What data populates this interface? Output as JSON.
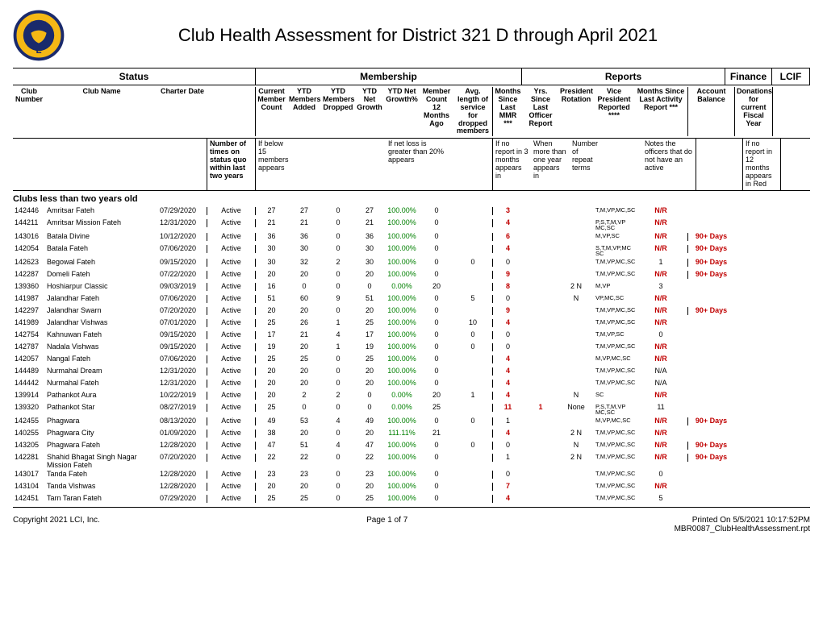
{
  "title": "Club Health Assessment for District 321 D through April 2021",
  "section_headers": {
    "status": "Status",
    "membership": "Membership",
    "reports": "Reports",
    "finance": "Finance",
    "lcif": "LCIF"
  },
  "col_headers": {
    "club_number": "Club Number",
    "club_name": "Club Name",
    "charter_date": "Charter Date",
    "number_of_times": "Number of times on status quo within last two years",
    "member_count": "Current Member Count",
    "ytd_added": "YTD Members Added",
    "ytd_dropped": "YTD Members Dropped",
    "ytd_net_growth": "YTD Net Growth",
    "ytd_net_growth_pct": "YTD Net Growth%",
    "count12ago": "Member Count 12 Months Ago",
    "avg_length": "Avg. length of service for dropped members",
    "months_since_mmr": "Months Since Last MMR ***",
    "yrs_since_officer": "Yrs. Since Last Officer Report",
    "pres_rotation": "President Rotation",
    "vp_reported": "Vice President Reported ****",
    "months_activity": "Months Since Last Activity Report ***",
    "account_balance": "Account Balance",
    "donations": "Donations for current Fiscal Year"
  },
  "notes": {
    "notimes": "Number of times on status quo within last two years",
    "mcount": "If below 15 members appears",
    "netloss": "If net loss is greater than 20% appears",
    "mosince": "If no report in 3 months appears in",
    "yrsince": "When more than one year appears in",
    "presrot": "Number of repeat terms",
    "vprep": "Notes the officers that do not have an active",
    "lcif": "If no report in 12 months appears in Red"
  },
  "section_title": "Clubs less than two years old",
  "colors": {
    "growth_green": "#008000",
    "alert_red": "#c00000",
    "text": "#000000",
    "background": "#ffffff",
    "border": "#000000"
  },
  "rows": [
    {
      "no": "142446",
      "name": "Amritsar Fateh",
      "charter": "07/29/2020",
      "status": "Active",
      "mc": "27",
      "add": "27",
      "drop": "0",
      "net": "27",
      "pct": "100.00%",
      "c12": "0",
      "avg": "",
      "mos": "3",
      "mos_red": true,
      "yrs": "",
      "rot": "",
      "vp": "T,M,VP,MC,SC",
      "act": "N/R",
      "act_red": true,
      "acct": "",
      "don": ""
    },
    {
      "no": "144211",
      "name": "Amritsar Mission Fateh",
      "charter": "12/31/2020",
      "status": "Active",
      "mc": "21",
      "add": "21",
      "drop": "0",
      "net": "21",
      "pct": "100.00%",
      "c12": "0",
      "avg": "",
      "mos": "4",
      "mos_red": true,
      "yrs": "",
      "rot": "",
      "vp": "P,S,T,M,VP MC,SC",
      "act": "N/R",
      "act_red": true,
      "acct": "",
      "don": ""
    },
    {
      "no": "143016",
      "name": "Batala Divine",
      "charter": "10/12/2020",
      "status": "Active",
      "mc": "36",
      "add": "36",
      "drop": "0",
      "net": "36",
      "pct": "100.00%",
      "c12": "0",
      "avg": "",
      "mos": "6",
      "mos_red": true,
      "yrs": "",
      "rot": "",
      "vp": "M,VP,SC",
      "act": "N/R",
      "act_red": true,
      "acct": "90+ Days",
      "don": ""
    },
    {
      "no": "142054",
      "name": "Batala Fateh",
      "charter": "07/06/2020",
      "status": "Active",
      "mc": "30",
      "add": "30",
      "drop": "0",
      "net": "30",
      "pct": "100.00%",
      "c12": "0",
      "avg": "",
      "mos": "4",
      "mos_red": true,
      "yrs": "",
      "rot": "",
      "vp": "S,T,M,VP,MC SC",
      "act": "N/R",
      "act_red": true,
      "acct": "90+ Days",
      "don": ""
    },
    {
      "no": "142623",
      "name": "Begowal Fateh",
      "charter": "09/15/2020",
      "status": "Active",
      "mc": "30",
      "add": "32",
      "drop": "2",
      "net": "30",
      "pct": "100.00%",
      "c12": "0",
      "avg": "0",
      "mos": "0",
      "mos_red": false,
      "yrs": "",
      "rot": "",
      "vp": "T,M,VP,MC,SC",
      "act": "1",
      "act_red": false,
      "acct": "90+ Days",
      "don": ""
    },
    {
      "no": "142287",
      "name": "Domeli Fateh",
      "charter": "07/22/2020",
      "status": "Active",
      "mc": "20",
      "add": "20",
      "drop": "0",
      "net": "20",
      "pct": "100.00%",
      "c12": "0",
      "avg": "",
      "mos": "9",
      "mos_red": true,
      "yrs": "",
      "rot": "",
      "vp": "T,M,VP,MC,SC",
      "act": "N/R",
      "act_red": true,
      "acct": "90+ Days",
      "don": ""
    },
    {
      "no": "139360",
      "name": "Hoshiarpur Classic",
      "charter": "09/03/2019",
      "status": "Active",
      "mc": "16",
      "add": "0",
      "drop": "0",
      "net": "0",
      "pct": "0.00%",
      "c12": "20",
      "avg": "",
      "mos": "8",
      "mos_red": true,
      "yrs": "",
      "rot": "2",
      "rot_n": "N",
      "vp": "M,VP",
      "act": "3",
      "act_red": false,
      "acct": "",
      "don": ""
    },
    {
      "no": "141987",
      "name": "Jalandhar Fateh",
      "charter": "07/06/2020",
      "status": "Active",
      "mc": "51",
      "add": "60",
      "drop": "9",
      "net": "51",
      "pct": "100.00%",
      "c12": "0",
      "avg": "5",
      "mos": "0",
      "mos_red": false,
      "yrs": "",
      "rot": "",
      "rot_n": "N",
      "vp": "VP,MC,SC",
      "act": "N/R",
      "act_red": true,
      "acct": "",
      "don": ""
    },
    {
      "no": "142297",
      "name": "Jalandhar Swarn",
      "charter": "07/20/2020",
      "status": "Active",
      "mc": "20",
      "add": "20",
      "drop": "0",
      "net": "20",
      "pct": "100.00%",
      "c12": "0",
      "avg": "",
      "mos": "9",
      "mos_red": true,
      "yrs": "",
      "rot": "",
      "vp": "T,M,VP,MC,SC",
      "act": "N/R",
      "act_red": true,
      "acct": "90+ Days",
      "don": ""
    },
    {
      "no": "141989",
      "name": "Jalandhar Vishwas",
      "charter": "07/01/2020",
      "status": "Active",
      "mc": "25",
      "add": "26",
      "drop": "1",
      "net": "25",
      "pct": "100.00%",
      "c12": "0",
      "avg": "10",
      "mos": "4",
      "mos_red": true,
      "yrs": "",
      "rot": "",
      "vp": "T,M,VP,MC,SC",
      "act": "N/R",
      "act_red": true,
      "acct": "",
      "don": ""
    },
    {
      "no": "142754",
      "name": "Kahnuwan Fateh",
      "charter": "09/15/2020",
      "status": "Active",
      "mc": "17",
      "add": "21",
      "drop": "4",
      "net": "17",
      "pct": "100.00%",
      "c12": "0",
      "avg": "0",
      "mos": "0",
      "mos_red": false,
      "yrs": "",
      "rot": "",
      "vp": "T,M,VP,SC",
      "act": "0",
      "act_red": false,
      "acct": "",
      "don": ""
    },
    {
      "no": "142787",
      "name": "Nadala Vishwas",
      "charter": "09/15/2020",
      "status": "Active",
      "mc": "19",
      "add": "20",
      "drop": "1",
      "net": "19",
      "pct": "100.00%",
      "c12": "0",
      "avg": "0",
      "mos": "0",
      "mos_red": false,
      "yrs": "",
      "rot": "",
      "vp": "T,M,VP,MC,SC",
      "act": "N/R",
      "act_red": true,
      "acct": "",
      "don": ""
    },
    {
      "no": "142057",
      "name": "Nangal Fateh",
      "charter": "07/06/2020",
      "status": "Active",
      "mc": "25",
      "add": "25",
      "drop": "0",
      "net": "25",
      "pct": "100.00%",
      "c12": "0",
      "avg": "",
      "mos": "4",
      "mos_red": true,
      "yrs": "",
      "rot": "",
      "vp": "M,VP,MC,SC",
      "act": "N/R",
      "act_red": true,
      "acct": "",
      "don": ""
    },
    {
      "no": "144489",
      "name": "Nurmahal Dream",
      "charter": "12/31/2020",
      "status": "Active",
      "mc": "20",
      "add": "20",
      "drop": "0",
      "net": "20",
      "pct": "100.00%",
      "c12": "0",
      "avg": "",
      "mos": "4",
      "mos_red": true,
      "yrs": "",
      "rot": "",
      "vp": "T,M,VP,MC,SC",
      "act": "N/A",
      "act_red": false,
      "acct": "",
      "don": ""
    },
    {
      "no": "144442",
      "name": "Nurmahal Fateh",
      "charter": "12/31/2020",
      "status": "Active",
      "mc": "20",
      "add": "20",
      "drop": "0",
      "net": "20",
      "pct": "100.00%",
      "c12": "0",
      "avg": "",
      "mos": "4",
      "mos_red": true,
      "yrs": "",
      "rot": "",
      "vp": "T,M,VP,MC,SC",
      "act": "N/A",
      "act_red": false,
      "acct": "",
      "don": ""
    },
    {
      "no": "139914",
      "name": "Pathankot Aura",
      "charter": "10/22/2019",
      "status": "Active",
      "mc": "20",
      "add": "2",
      "drop": "2",
      "net": "0",
      "pct": "0.00%",
      "c12": "20",
      "avg": "1",
      "mos": "4",
      "mos_red": true,
      "yrs": "",
      "rot": "",
      "rot_n": "N",
      "vp": "SC",
      "act": "N/R",
      "act_red": true,
      "acct": "",
      "don": ""
    },
    {
      "no": "139320",
      "name": "Pathankot Star",
      "charter": "08/27/2019",
      "status": "Active",
      "mc": "25",
      "add": "0",
      "drop": "0",
      "net": "0",
      "pct": "0.00%",
      "c12": "25",
      "avg": "",
      "mos": "11",
      "mos_red": true,
      "yrs": "1",
      "yrs_red": true,
      "rot": "None",
      "vp": "P,S,T,M,VP MC,SC",
      "act": "11",
      "act_red": false,
      "acct": "",
      "don": ""
    },
    {
      "no": "142455",
      "name": "Phagwara",
      "charter": "08/13/2020",
      "status": "Active",
      "mc": "49",
      "add": "53",
      "drop": "4",
      "net": "49",
      "pct": "100.00%",
      "c12": "0",
      "avg": "0",
      "mos": "1",
      "mos_red": false,
      "yrs": "",
      "rot": "",
      "vp": "M,VP,MC,SC",
      "act": "N/R",
      "act_red": true,
      "acct": "90+ Days",
      "don": ""
    },
    {
      "no": "140255",
      "name": "Phagwara City",
      "charter": "01/09/2020",
      "status": "Active",
      "mc": "38",
      "add": "20",
      "drop": "0",
      "net": "20",
      "pct": "111.11%",
      "c12": "21",
      "avg": "",
      "mos": "4",
      "mos_red": true,
      "yrs": "",
      "rot": "2",
      "rot_n": "N",
      "vp": "T,M,VP,MC,SC",
      "act": "N/R",
      "act_red": true,
      "acct": "",
      "don": ""
    },
    {
      "no": "143205",
      "name": "Phagwara Fateh",
      "charter": "12/28/2020",
      "status": "Active",
      "mc": "47",
      "add": "51",
      "drop": "4",
      "net": "47",
      "pct": "100.00%",
      "c12": "0",
      "avg": "0",
      "mos": "0",
      "mos_red": false,
      "yrs": "",
      "rot": "",
      "rot_n": "N",
      "vp": "T,M,VP,MC,SC",
      "act": "N/R",
      "act_red": true,
      "acct": "90+ Days",
      "don": ""
    },
    {
      "no": "142281",
      "name": "Shahid Bhagat Singh Nagar Mission Fateh",
      "charter": "07/20/2020",
      "status": "Active",
      "mc": "22",
      "add": "22",
      "drop": "0",
      "net": "22",
      "pct": "100.00%",
      "c12": "0",
      "avg": "",
      "mos": "1",
      "mos_red": false,
      "yrs": "",
      "rot": "2",
      "rot_n": "N",
      "vp": "T,M,VP,MC,SC",
      "act": "N/R",
      "act_red": true,
      "acct": "90+ Days",
      "don": ""
    },
    {
      "no": "143017",
      "name": "Tanda Fateh",
      "charter": "12/28/2020",
      "status": "Active",
      "mc": "23",
      "add": "23",
      "drop": "0",
      "net": "23",
      "pct": "100.00%",
      "c12": "0",
      "avg": "",
      "mos": "0",
      "mos_red": false,
      "yrs": "",
      "rot": "",
      "vp": "T,M,VP,MC,SC",
      "act": "0",
      "act_red": false,
      "acct": "",
      "don": ""
    },
    {
      "no": "143104",
      "name": "Tanda Vishwas",
      "charter": "12/28/2020",
      "status": "Active",
      "mc": "20",
      "add": "20",
      "drop": "0",
      "net": "20",
      "pct": "100.00%",
      "c12": "0",
      "avg": "",
      "mos": "7",
      "mos_red": true,
      "yrs": "",
      "rot": "",
      "vp": "T,M,VP,MC,SC",
      "act": "N/R",
      "act_red": true,
      "acct": "",
      "don": ""
    },
    {
      "no": "142451",
      "name": "Tarn Taran Fateh",
      "charter": "07/29/2020",
      "status": "Active",
      "mc": "25",
      "add": "25",
      "drop": "0",
      "net": "25",
      "pct": "100.00%",
      "c12": "0",
      "avg": "",
      "mos": "4",
      "mos_red": true,
      "yrs": "",
      "rot": "",
      "vp": "T,M,VP,MC,SC",
      "act": "5",
      "act_red": false,
      "acct": "",
      "don": ""
    }
  ],
  "footer": {
    "copyright": "Copyright 2021 LCI, Inc.",
    "page": "Page 1 of 7",
    "printed": "Printed On  5/5/2021  10:17:52PM",
    "report_id": "MBR0087_ClubHealthAssessment.rpt"
  }
}
